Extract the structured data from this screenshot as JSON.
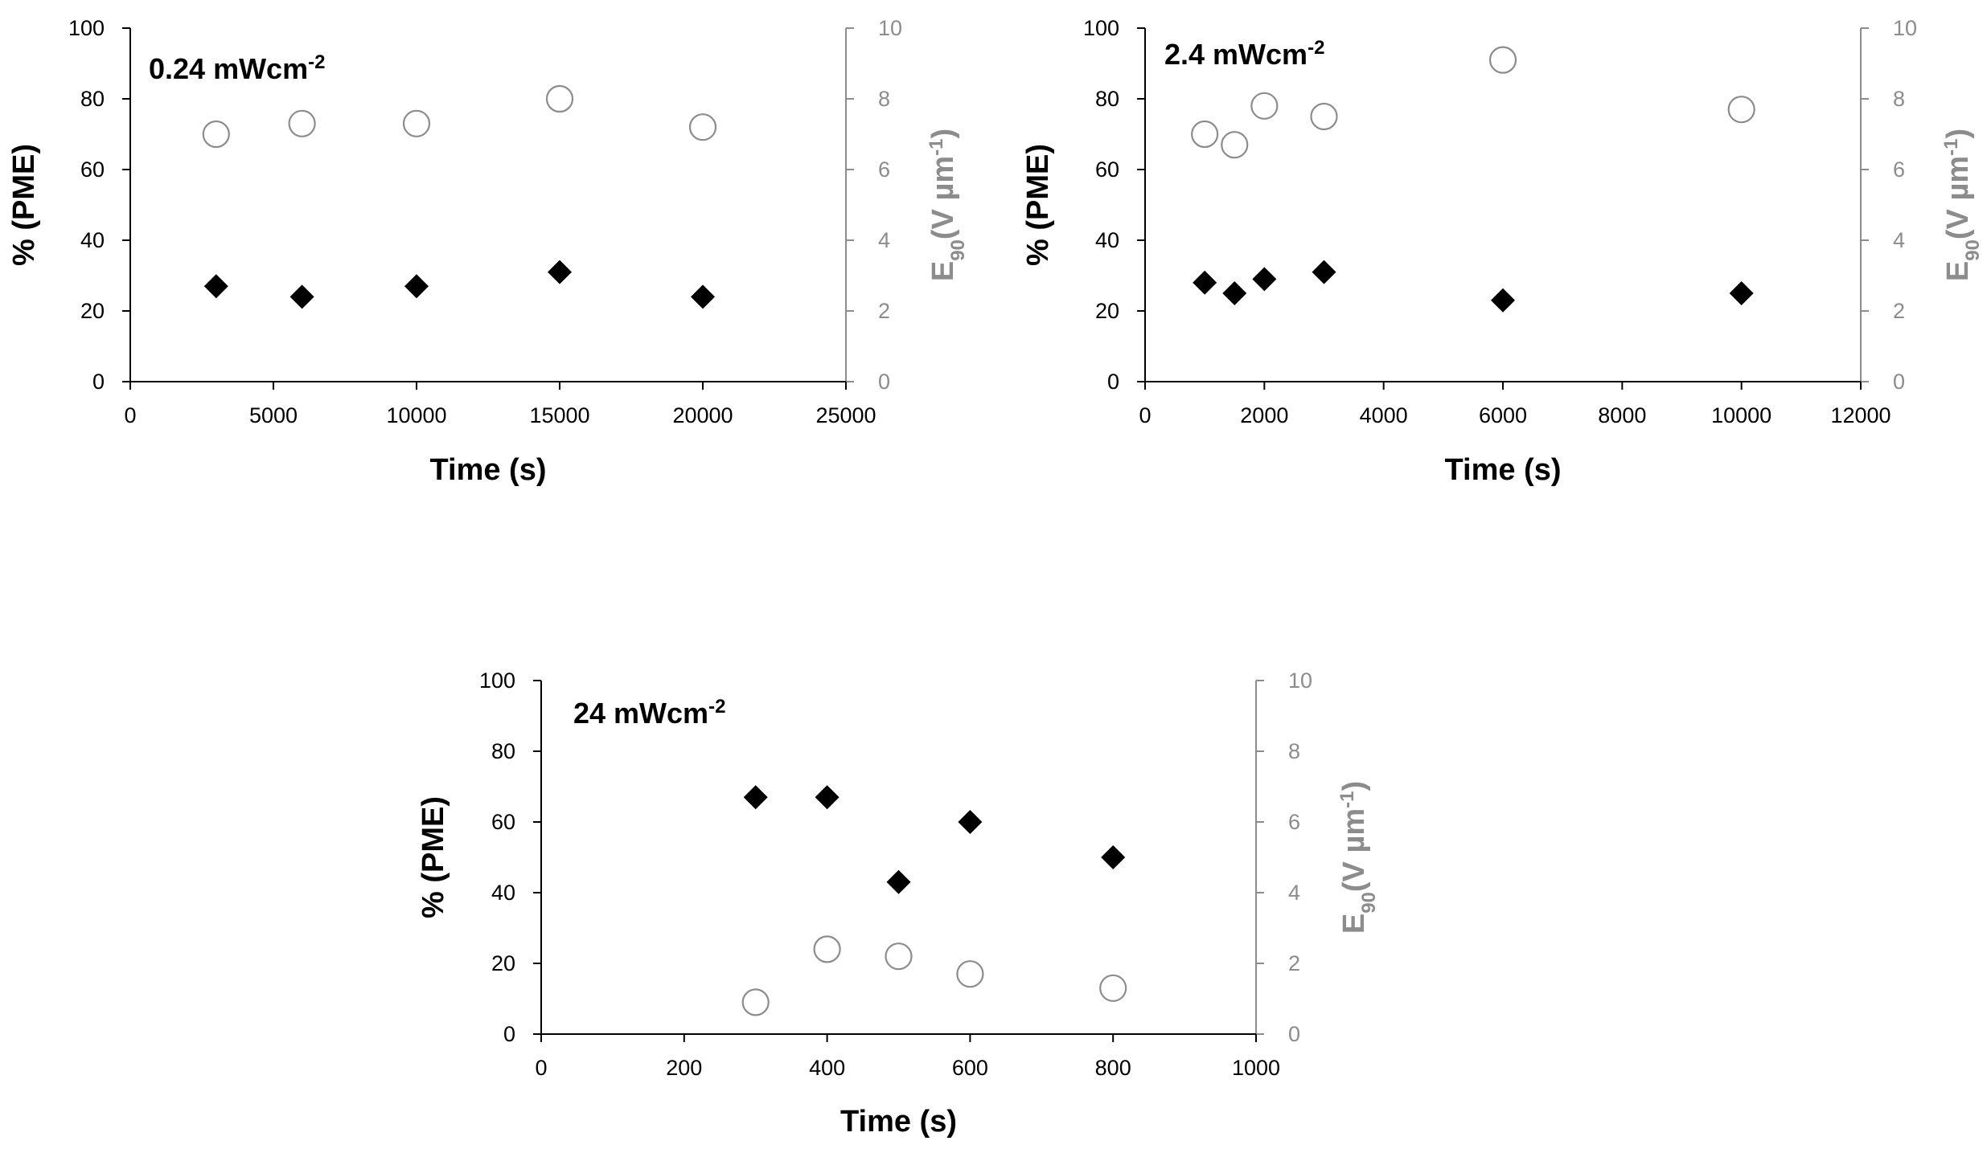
{
  "colors": {
    "primary": "#000000",
    "secondary": "#8c8c8c",
    "background": "#ffffff"
  },
  "chart_data": [
    {
      "type": "scatter",
      "label": {
        "text": "0.24 mWcm",
        "sup": "-2"
      },
      "xlabel": "Time (s)",
      "ylabel_left": "% (PME)",
      "ylabel_right": {
        "main": "E",
        "sub": "90",
        "units": "(V µm",
        "sup": "-1",
        "close": ")"
      },
      "xlim": [
        0,
        25000
      ],
      "xticks": [
        0,
        5000,
        10000,
        15000,
        20000,
        25000
      ],
      "xtick_labels": [
        "0",
        "5000",
        "10000",
        "15000",
        "20000",
        "25000"
      ],
      "ylim_left": [
        0,
        100
      ],
      "yticks_left": [
        0,
        20,
        40,
        60,
        80,
        100
      ],
      "ylim_right": [
        0,
        10
      ],
      "yticks_right": [
        0,
        2,
        4,
        6,
        8,
        10
      ],
      "series": [
        {
          "name": "% (PME)",
          "axis": "left",
          "marker": "filled-diamond",
          "x": [
            3000,
            6000,
            10000,
            15000,
            20000
          ],
          "y": [
            27,
            24,
            27,
            31,
            24
          ]
        },
        {
          "name": "E90",
          "axis": "right",
          "marker": "open-circle",
          "x": [
            3000,
            6000,
            10000,
            15000,
            20000
          ],
          "y": [
            7.0,
            7.3,
            7.3,
            8.0,
            7.2
          ]
        }
      ]
    },
    {
      "type": "scatter",
      "label": {
        "text": "2.4 mWcm",
        "sup": "-2"
      },
      "xlabel": "Time (s)",
      "ylabel_left": "% (PME)",
      "ylabel_right": {
        "main": "E",
        "sub": "90",
        "units": "(V µm",
        "sup": "-1",
        "close": ")"
      },
      "xlim": [
        0,
        12000
      ],
      "xticks": [
        0,
        2000,
        4000,
        6000,
        8000,
        10000,
        12000
      ],
      "xtick_labels": [
        "0",
        "2000",
        "4000",
        "6000",
        "8000",
        "10000",
        "12000"
      ],
      "ylim_left": [
        0,
        100
      ],
      "yticks_left": [
        0,
        20,
        40,
        60,
        80,
        100
      ],
      "ylim_right": [
        0,
        10
      ],
      "yticks_right": [
        0,
        2,
        4,
        6,
        8,
        10
      ],
      "series": [
        {
          "name": "% (PME)",
          "axis": "left",
          "marker": "filled-diamond",
          "x": [
            1000,
            1500,
            2000,
            3000,
            6000,
            10000
          ],
          "y": [
            28,
            25,
            29,
            31,
            23,
            25
          ]
        },
        {
          "name": "E90",
          "axis": "right",
          "marker": "open-circle",
          "x": [
            1000,
            1500,
            2000,
            3000,
            6000,
            10000
          ],
          "y": [
            7.0,
            6.7,
            7.8,
            7.5,
            9.1,
            7.7
          ]
        }
      ]
    },
    {
      "type": "scatter",
      "label": {
        "text": "24 mWcm",
        "sup": "-2"
      },
      "xlabel": "Time (s)",
      "ylabel_left": "% (PME)",
      "ylabel_right": {
        "main": "E",
        "sub": "90",
        "units": "(V µm",
        "sup": "-1",
        "close": ")"
      },
      "xlim": [
        0,
        1000
      ],
      "xticks": [
        0,
        200,
        400,
        600,
        800,
        1000
      ],
      "xtick_labels": [
        "0",
        "200",
        "400",
        "600",
        "800",
        "1000"
      ],
      "ylim_left": [
        0,
        100
      ],
      "yticks_left": [
        0,
        20,
        40,
        60,
        80,
        100
      ],
      "ylim_right": [
        0,
        10
      ],
      "yticks_right": [
        0,
        2,
        4,
        6,
        8,
        10
      ],
      "series": [
        {
          "name": "% (PME)",
          "axis": "left",
          "marker": "filled-diamond",
          "x": [
            300,
            400,
            500,
            600,
            800
          ],
          "y": [
            67,
            67,
            43,
            60,
            50
          ]
        },
        {
          "name": "E90",
          "axis": "right",
          "marker": "open-circle",
          "x": [
            300,
            400,
            500,
            600,
            800
          ],
          "y": [
            0.9,
            2.4,
            2.2,
            1.7,
            1.3
          ]
        }
      ]
    }
  ]
}
